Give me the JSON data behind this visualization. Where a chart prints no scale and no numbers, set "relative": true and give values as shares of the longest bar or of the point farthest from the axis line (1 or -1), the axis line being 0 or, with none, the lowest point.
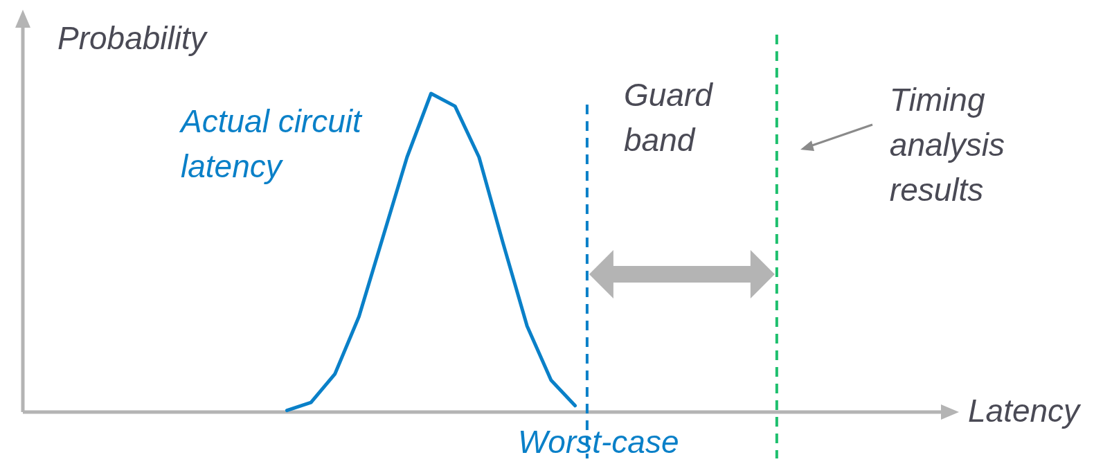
{
  "chart_data": {
    "type": "line",
    "xlabel": "Latency",
    "ylabel": "Probability",
    "relative": true,
    "categories": [
      null,
      null,
      null,
      null,
      null,
      null,
      null,
      null,
      null,
      null,
      null,
      null,
      null,
      null,
      null,
      null,
      null,
      null,
      null,
      null,
      null,
      null,
      null,
      null,
      null,
      null,
      null,
      null,
      null,
      null,
      null,
      null,
      null,
      null,
      null,
      null,
      null,
      null,
      null
    ],
    "series": [
      {
        "name": "Actual circuit latency",
        "color": "#0a80c8",
        "values": [
          null,
          null,
          null,
          null,
          null,
          null,
          null,
          null,
          null,
          null,
          null,
          0.005,
          0.03,
          0.12,
          0.3,
          0.55,
          0.8,
          1,
          0.96,
          0.8,
          0.53,
          0.27,
          0.1,
          0.02,
          null,
          null,
          null,
          null,
          null,
          null,
          null,
          null,
          null,
          null,
          null,
          null,
          null,
          null,
          null
        ]
      }
    ],
    "annotations": [
      "Guard band",
      "Worst-case",
      "Timing analysis results"
    ]
  }
}
